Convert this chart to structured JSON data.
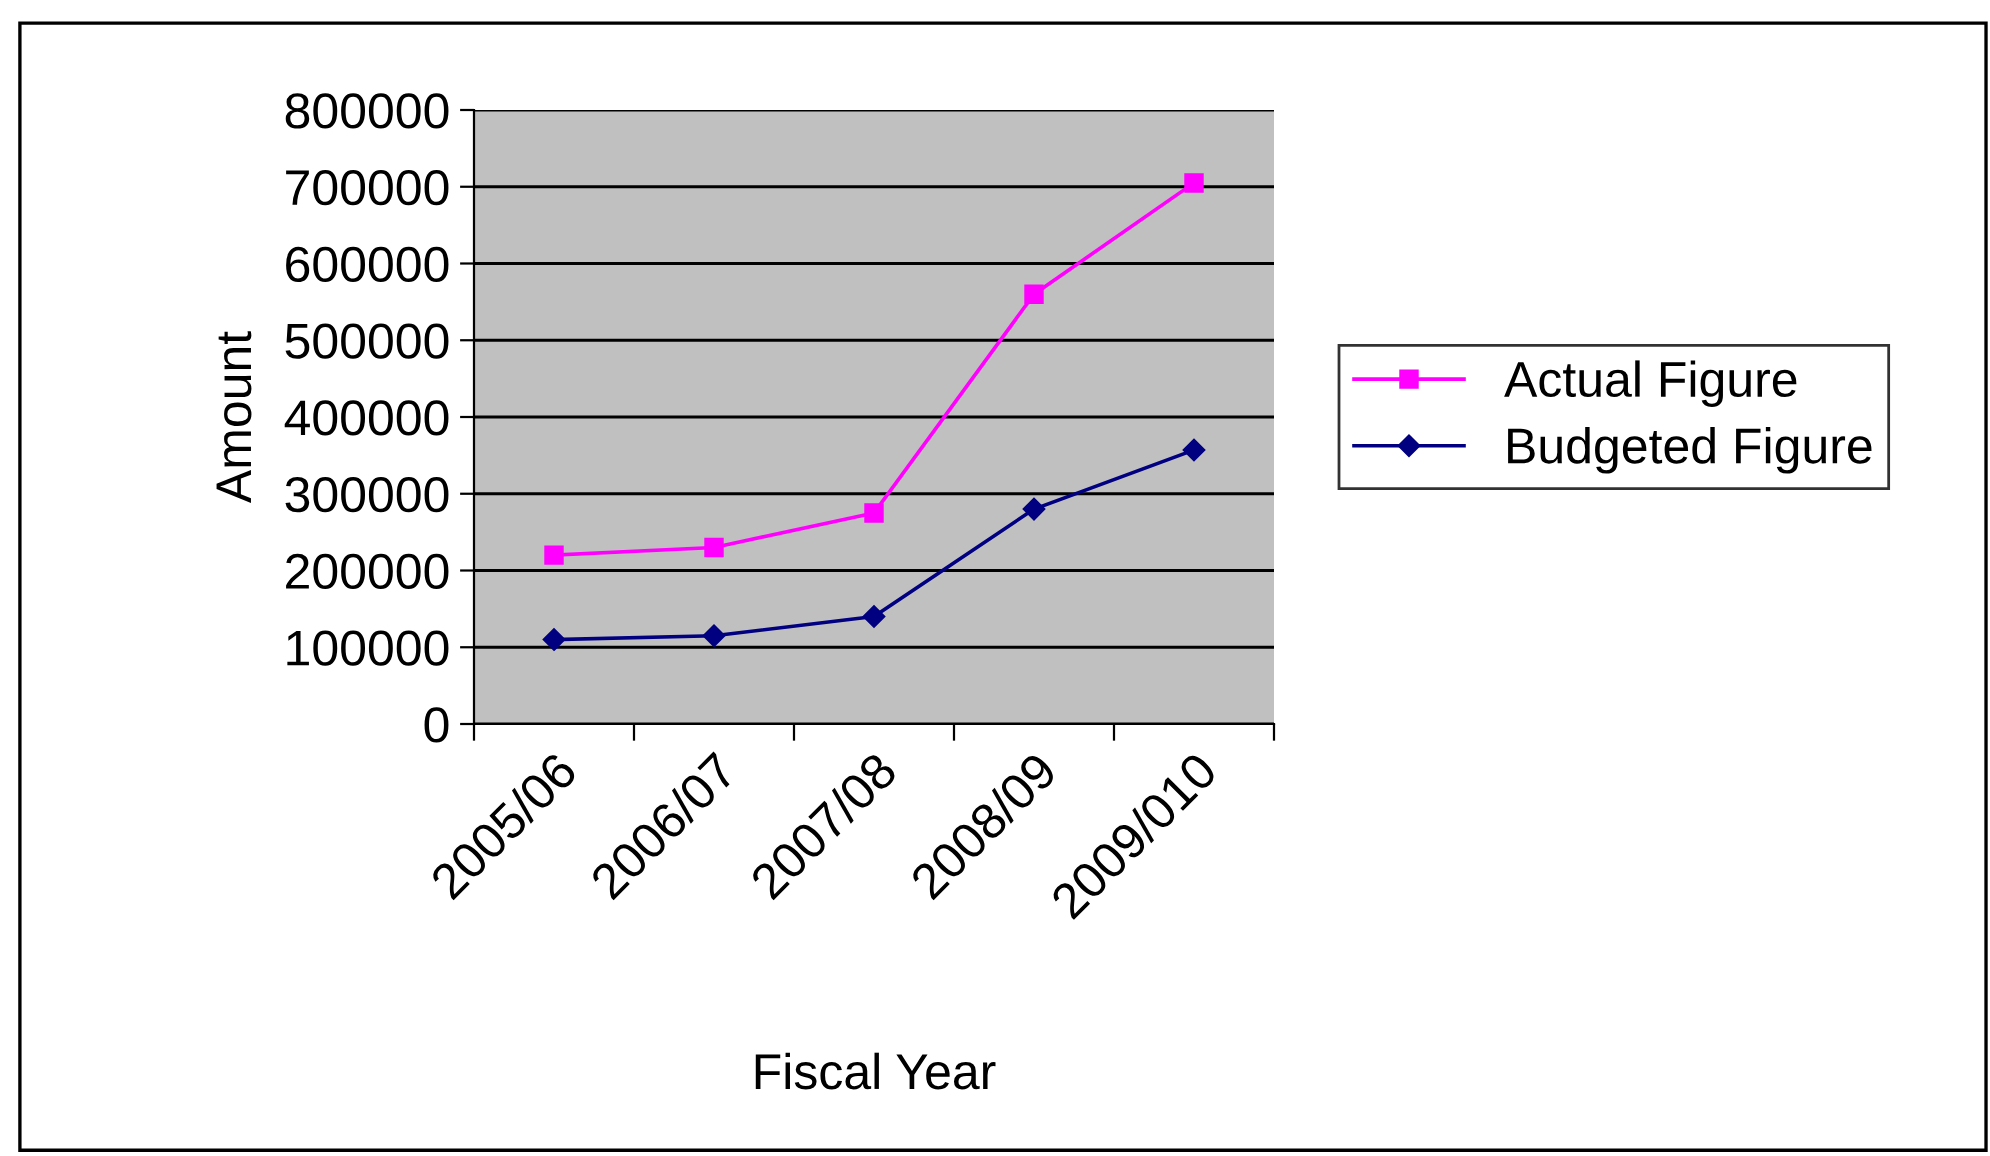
{
  "chart_data": {
    "type": "line",
    "xlabel": "Fiscal Year",
    "ylabel": "Amount",
    "categories": [
      "2005/06",
      "2006/07",
      "2007/08",
      "2008/09",
      "2009/010"
    ],
    "series": [
      {
        "name": "Actual Figure",
        "color": "#ff00ff",
        "marker": "square",
        "values": [
          220000,
          230000,
          275000,
          560000,
          705000
        ]
      },
      {
        "name": "Budgeted Figure",
        "color": "#000080",
        "marker": "diamond",
        "values": [
          110000,
          115000,
          140000,
          280000,
          357000
        ]
      }
    ],
    "ylim": [
      0,
      800000
    ],
    "yticks": [
      0,
      100000,
      200000,
      300000,
      400000,
      500000,
      600000,
      700000,
      800000
    ],
    "grid": "y",
    "legend": "right"
  }
}
